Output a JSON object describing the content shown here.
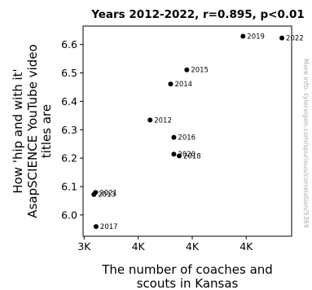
{
  "chart_data": {
    "type": "scatter",
    "title": "Years 2012-2022, r=0.895, p<0.01",
    "xlabel": [
      "The number of coaches and",
      "scouts in Kansas"
    ],
    "ylabel": [
      "How 'hip and with it'",
      "AsapSCIENCE YouTube video",
      "titles are"
    ],
    "xlim": [
      2990,
      4920
    ],
    "ylim": [
      5.925,
      6.665
    ],
    "xticks": [
      {
        "value": 3000,
        "label": "3K"
      },
      {
        "value": 3500,
        "label": "4K"
      },
      {
        "value": 4000,
        "label": "4K"
      },
      {
        "value": 4500,
        "label": "4K"
      }
    ],
    "yticks": [
      {
        "value": 6.0,
        "label": "6.0"
      },
      {
        "value": 6.1,
        "label": "6.1"
      },
      {
        "value": 6.2,
        "label": "6.2"
      },
      {
        "value": 6.3,
        "label": "6.3"
      },
      {
        "value": 6.4,
        "label": "6.4"
      },
      {
        "value": 6.5,
        "label": "6.5"
      },
      {
        "value": 6.6,
        "label": "6.6"
      }
    ],
    "points": [
      {
        "label": "2012",
        "x": 3610,
        "y": 6.334
      },
      {
        "label": "2013",
        "x": 3090,
        "y": 6.072
      },
      {
        "label": "2014",
        "x": 3800,
        "y": 6.461
      },
      {
        "label": "2015",
        "x": 3950,
        "y": 6.511
      },
      {
        "label": "2016",
        "x": 3830,
        "y": 6.273
      },
      {
        "label": "2017",
        "x": 3110,
        "y": 5.959
      },
      {
        "label": "2018",
        "x": 3880,
        "y": 6.208
      },
      {
        "label": "2019",
        "x": 4470,
        "y": 6.629
      },
      {
        "label": "2020",
        "x": 3830,
        "y": 6.214
      },
      {
        "label": "2021",
        "x": 3105,
        "y": 6.079
      },
      {
        "label": "2022",
        "x": 4830,
        "y": 6.623
      }
    ],
    "grid": false,
    "marker_color": "#000000"
  },
  "watermark": "More info: tylervigen.com/spurious/correlation/5369"
}
